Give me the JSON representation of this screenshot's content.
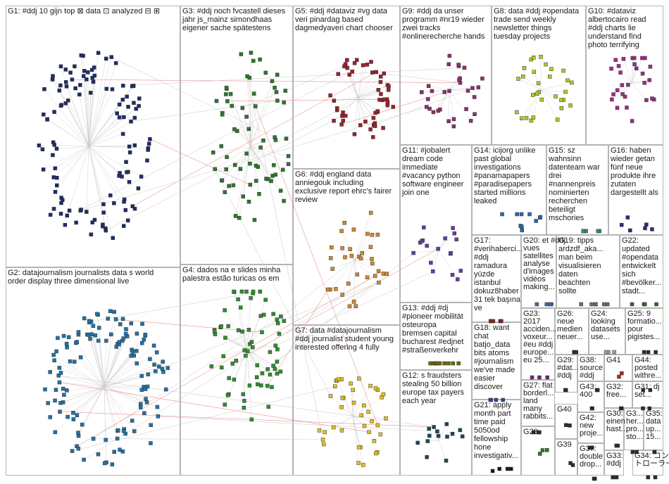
{
  "diagram": {
    "type": "network-group-grid",
    "groups": [
      {
        "id": "G1",
        "label_lines": [
          "G1: #ddj 10 gijn top ⊠ data ⊡ analyzed ⊟ ⊞"
        ],
        "color": "#1d2b6e"
      },
      {
        "id": "G2",
        "label_lines": [
          "G2: datajournalism journalists data s world",
          "order display three dimensional live"
        ],
        "color": "#1f73a8"
      },
      {
        "id": "G3",
        "label_lines": [
          "G3: #ddj noch fvcastell dieses",
          "jahr js_mainz simondhaas",
          "eigener sache spätestens"
        ],
        "color": "#2a7a2a"
      },
      {
        "id": "G4",
        "label_lines": [
          "G4: dados na e slides minha",
          "palestra estão turicas os em"
        ],
        "color": "#2f8f2f"
      },
      {
        "id": "G5",
        "label_lines": [
          "G5: #ddj #dataviz #vg data",
          "veri pinardag based",
          "dagmedyaveri chart chooser"
        ],
        "color": "#a01e2a"
      },
      {
        "id": "G6",
        "label_lines": [
          "G6: #ddj england data",
          "anniegouk including",
          "exclusive report ehrc's fairer",
          "review"
        ],
        "color": "#d08a2c"
      },
      {
        "id": "G7",
        "label_lines": [
          "G7: data #datajournalism",
          "#ddj journalist student young",
          "interested offering 4 fully"
        ],
        "color": "#e3c21c"
      },
      {
        "id": "G8",
        "label_lines": [
          "G8: data #ddj #opendata",
          "trade send weekly",
          "newsletter things",
          "tuesday projects"
        ],
        "color": "#b7c81e"
      },
      {
        "id": "G9",
        "label_lines": [
          "G9: #ddj da unser",
          "programm #nr19 wieder",
          "zwei tracks",
          "#onlinerecherche hands"
        ],
        "color": "#8e2f6e"
      },
      {
        "id": "G10",
        "label_lines": [
          "G10: #dataviz",
          "albertocairo read",
          "#ddj charts lie",
          "understand find",
          "photo terrifying"
        ],
        "color": "#a02a8c"
      },
      {
        "id": "G11",
        "label_lines": [
          "G11: #jobalert",
          "dream code",
          "immediate",
          "#vacancy python",
          "software engineer",
          "join one"
        ],
        "color": "#6a3aa8"
      },
      {
        "id": "G12",
        "label_lines": [
          "G12: s fraudsters",
          "stealing 50 billion",
          "europe tax payers",
          "each year"
        ],
        "color": "#1a4a5a"
      },
      {
        "id": "G13",
        "label_lines": [
          "G13: #ddj #dj",
          "#pioneer mobilität",
          "osteuropa",
          "bremsen capital",
          "bucharest #edjnet",
          "#straßenverkehr"
        ],
        "color": "#6b6b00"
      },
      {
        "id": "G14",
        "label_lines": [
          "G14: icijorg unlike",
          "past global",
          "investigations",
          "#panamapapers",
          "#paradisepapers",
          "started millions",
          "leaked"
        ],
        "color": "#2a6ab0"
      },
      {
        "id": "G15",
        "label_lines": [
          "G15: sz",
          "wahnsinn",
          "datenteam war",
          "drei",
          "#nannenpreis",
          "nominierten",
          "recherchen",
          "beteiligt",
          "mschories"
        ],
        "color": "#3a8a8a"
      },
      {
        "id": "G16",
        "label_lines": [
          "G16: haben",
          "wieder getan",
          "fünf neue",
          "produkte ihre",
          "zutaten",
          "dargestellt als"
        ],
        "color": "#2a2a7a"
      },
      {
        "id": "G17",
        "label_lines": [
          "G17:",
          "#verihaberci...",
          "#ddj",
          "ramadura",
          "yüzde",
          "istanbul",
          "dokuz8haber",
          "31 tek başına",
          "ve"
        ],
        "color": "#7a2a2a"
      },
      {
        "id": "G18",
        "label_lines": [
          "G18: want",
          "chat",
          "batjo_data",
          "bits atoms",
          "#journalism",
          "we've made",
          "easier",
          "discover"
        ],
        "color": "#2a4a8a"
      },
      {
        "id": "G19",
        "label_lines": [
          "G19: tipps",
          "ardzdf_aka...",
          "man beim",
          "visualisieren",
          "daten",
          "beachten",
          "sollte"
        ],
        "color": "#6a6a6a"
      },
      {
        "id": "G20",
        "label_lines": [
          "G20: et #ddj",
          "vues",
          "satellites",
          "analyse",
          "d'images",
          "vidéos",
          "making..."
        ],
        "color": "#3a6aa8"
      },
      {
        "id": "G21",
        "label_lines": [
          "G21: apply",
          "month part",
          "time paid",
          "5050od",
          "fellowship",
          "hone",
          "investigativ..."
        ],
        "color": "#1a1a1a"
      },
      {
        "id": "G22",
        "label_lines": [
          "G22:",
          "updated",
          "#opendata",
          "entwickelt",
          "sich",
          "#bevölker...",
          "stadt..."
        ],
        "color": "#2a6a2a"
      },
      {
        "id": "G23",
        "label_lines": [
          "G23:",
          "2017",
          "acciden...",
          "voxeur...",
          "#eu #ddj",
          "europe...",
          "eu 25..."
        ],
        "color": "#6a2a6a"
      },
      {
        "id": "G24",
        "label_lines": [
          "G24:",
          "looking",
          "datasets",
          "use..."
        ],
        "color": "#a0a0a0"
      },
      {
        "id": "G25",
        "label_lines": [
          "G25: 9",
          "formatio...",
          "pour",
          "pigistes..."
        ],
        "color": "#2a2a2a"
      },
      {
        "id": "G26",
        "label_lines": [
          "G26:",
          "neue",
          "medien",
          "neuer..."
        ],
        "color": "#2a2a2a"
      },
      {
        "id": "G27",
        "label_lines": [
          "G27: flat",
          "borderl...",
          "land",
          "many",
          "rabbits..."
        ],
        "color": "#2a2a2a"
      },
      {
        "id": "G28",
        "label_lines": [
          "G28"
        ],
        "color": "#2a7a2a"
      },
      {
        "id": "G29",
        "label_lines": [
          "G29:",
          "#dat...",
          "#ddj"
        ],
        "color": "#2a2a2a"
      },
      {
        "id": "G30",
        "label_lines": [
          "G30:",
          "einen",
          "hast..."
        ],
        "color": "#2a2a2a"
      },
      {
        "id": "G31",
        "label_lines": [
          "G31: dj",
          "set..."
        ],
        "color": "#2a2a2a"
      },
      {
        "id": "G32",
        "label_lines": [
          "G32:",
          "free..."
        ],
        "color": "#2a2a2a"
      },
      {
        "id": "G33",
        "label_lines": [
          "G33:",
          "#ddj"
        ],
        "color": "#2a2a2a"
      },
      {
        "id": "G34",
        "label_lines": [
          "G34: コン",
          "トローラー..."
        ],
        "color": "#2a2a2a"
      },
      {
        "id": "G35",
        "label_lines": [
          "G35:",
          "data",
          "up...",
          "15..."
        ],
        "color": "#2a2a2a"
      },
      {
        "id": "G36",
        "label_lines": [
          "G3...",
          "her...",
          "pro...",
          "sto..."
        ],
        "color": "#2a2a2a"
      },
      {
        "id": "G37",
        "label_lines": [
          "G37:",
          "double",
          "drop..."
        ],
        "color": "#2a2a2a"
      },
      {
        "id": "G38",
        "label_lines": [
          "G38:",
          "source",
          "#ddj"
        ],
        "color": "#2a2a2a"
      },
      {
        "id": "G39",
        "label_lines": [
          "G39"
        ],
        "color": "#2a2a2a"
      },
      {
        "id": "G40",
        "label_lines": [
          "G40"
        ],
        "color": "#2a2a2a"
      },
      {
        "id": "G41",
        "label_lines": [
          "G41"
        ],
        "color": "#a02a2a"
      },
      {
        "id": "G42",
        "label_lines": [
          "G42:",
          "new",
          "proje..."
        ],
        "color": "#2a2a2a"
      },
      {
        "id": "G43",
        "label_lines": [
          "G43:",
          "400"
        ],
        "color": "#2a2a2a"
      },
      {
        "id": "G44",
        "label_lines": [
          "G44:",
          "posted",
          "withre..."
        ],
        "color": "#2a2a2a"
      }
    ],
    "edge_colors": {
      "intra": "#c9c9c9",
      "inter": "#e07a7a"
    }
  }
}
